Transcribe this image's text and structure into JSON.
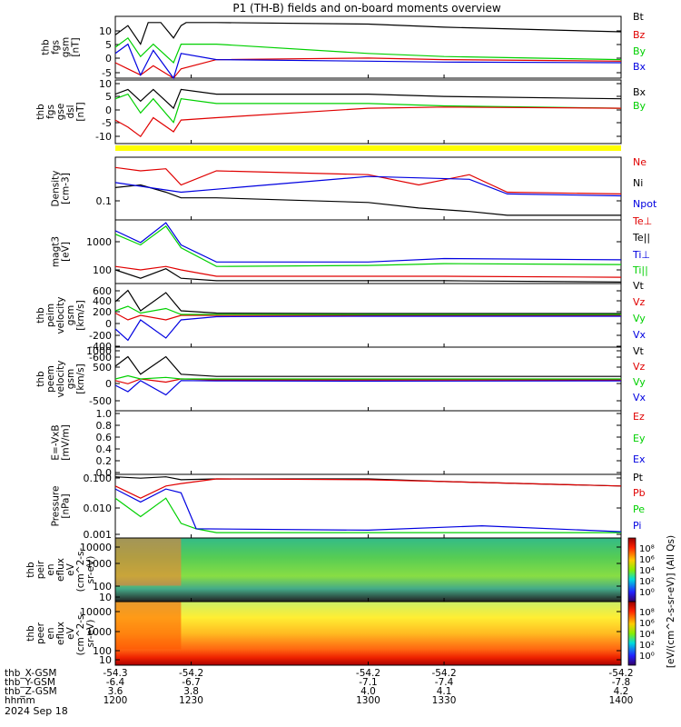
{
  "title": "P1 (TH-B) fields and on-board moments overview",
  "footer_date": "2024 Sep 18",
  "colors": {
    "black": "#000000",
    "red": "#e00000",
    "green": "#00d000",
    "blue": "#0000e0",
    "yellow": "#ffff00"
  },
  "chart_data": [
    {
      "type": "line",
      "panel": "thb_fgs_gsm",
      "ylabel": [
        "thb",
        "fgs",
        "gsm",
        "[nT]"
      ],
      "ylim": [
        -5,
        15
      ],
      "yticks": [
        "10",
        "5",
        "0",
        "-5"
      ],
      "series": [
        {
          "name": "Bt",
          "color": "black",
          "x": [
            1200,
            1205,
            1210,
            1213,
            1218,
            1223,
            1226,
            1228,
            1240,
            1300,
            1330,
            1400
          ],
          "y": [
            9,
            12,
            6,
            13,
            13,
            8,
            12,
            13,
            13,
            12.5,
            11.5,
            10
          ]
        },
        {
          "name": "Bz",
          "color": "red",
          "x": [
            1200,
            1205,
            1210,
            1215,
            1223,
            1226,
            1240,
            1300,
            1330,
            1400
          ],
          "y": [
            0,
            -2,
            -4,
            -1,
            -5,
            -2,
            1,
            1.5,
            1,
            0.5
          ]
        },
        {
          "name": "By",
          "color": "green",
          "x": [
            1200,
            1205,
            1210,
            1215,
            1223,
            1226,
            1240,
            1300,
            1330,
            1400
          ],
          "y": [
            5,
            8,
            2,
            6,
            0,
            6,
            6,
            3,
            2,
            1
          ]
        },
        {
          "name": "Bx",
          "color": "blue",
          "x": [
            1200,
            1205,
            1210,
            1215,
            1223,
            1226,
            1240,
            1300,
            1330,
            1400
          ],
          "y": [
            3,
            6,
            -4,
            4,
            -5,
            3,
            1,
            0.5,
            0.2,
            0
          ]
        }
      ]
    },
    {
      "type": "line",
      "panel": "thb_fgs_gse_dsl",
      "ylabel": [
        "thb",
        "fgs",
        "gse",
        "dsl",
        "[nT]"
      ],
      "ylim": [
        -15,
        12
      ],
      "yticks": [
        "10",
        "5",
        "0",
        "-5",
        "-10"
      ],
      "series": [
        {
          "name": "Bx",
          "color": "black",
          "x": [
            1200,
            1205,
            1210,
            1215,
            1223,
            1226,
            1240,
            1300,
            1330,
            1400
          ],
          "y": [
            6,
            8,
            3,
            8,
            0,
            8,
            6,
            6,
            5,
            4
          ]
        },
        {
          "name": "By",
          "color": "green",
          "x": [
            1200,
            1205,
            1210,
            1215,
            1223,
            1226,
            1240,
            1300,
            1330,
            1400
          ],
          "y": [
            4,
            6,
            -2,
            4,
            -6,
            4,
            2,
            2,
            1,
            0
          ]
        },
        {
          "name": "Bz",
          "color": "red",
          "x": [
            1200,
            1205,
            1210,
            1215,
            1223,
            1226,
            1240,
            1300,
            1330,
            1400
          ],
          "y": [
            -5,
            -8,
            -12,
            -4,
            -10,
            -5,
            -4,
            0,
            0.5,
            0
          ]
        }
      ]
    },
    {
      "type": "line",
      "panel": "density",
      "ylabel": [
        "Density",
        "[cm-3]"
      ],
      "yscale": "log",
      "ylim": [
        0.05,
        0.6
      ],
      "yticks": [
        "0.1"
      ],
      "series": [
        {
          "name": "Ne",
          "color": "red",
          "x": [
            1200,
            1210,
            1220,
            1226,
            1240,
            1300,
            1320,
            1340,
            1355,
            1400
          ],
          "y": [
            0.4,
            0.35,
            0.38,
            0.2,
            0.35,
            0.3,
            0.2,
            0.3,
            0.15,
            0.14
          ]
        },
        {
          "name": "Ni",
          "color": "black",
          "x": [
            1200,
            1210,
            1220,
            1226,
            1240,
            1300,
            1320,
            1340,
            1355,
            1400
          ],
          "y": [
            0.18,
            0.2,
            0.15,
            0.12,
            0.12,
            0.1,
            0.08,
            0.07,
            0.06,
            0.06
          ]
        },
        {
          "name": "Npot",
          "color": "blue",
          "x": [
            1200,
            1226,
            1260,
            1300,
            1340,
            1355,
            1400
          ],
          "y": [
            0.22,
            0.15,
            0.2,
            0.28,
            0.25,
            0.14,
            0.13
          ]
        }
      ]
    },
    {
      "type": "line",
      "panel": "magt3",
      "ylabel": [
        "magt3",
        "[eV]"
      ],
      "yscale": "log",
      "ylim": [
        50,
        3000
      ],
      "yticks": [
        "1000",
        "100"
      ],
      "series": [
        {
          "name": "Te⊥",
          "color": "red",
          "x": [
            1200,
            1210,
            1220,
            1226,
            1240,
            1300,
            1330,
            1400
          ],
          "y": [
            150,
            120,
            150,
            120,
            80,
            80,
            80,
            75
          ]
        },
        {
          "name": "Te||",
          "color": "black",
          "x": [
            1200,
            1210,
            1220,
            1226,
            1240,
            1300,
            1330,
            1400
          ],
          "y": [
            120,
            70,
            130,
            70,
            60,
            60,
            60,
            55
          ]
        },
        {
          "name": "Ti⊥",
          "color": "blue",
          "x": [
            1200,
            1210,
            1220,
            1226,
            1240,
            1300,
            1330,
            1400
          ],
          "y": [
            1500,
            700,
            2500,
            600,
            200,
            200,
            250,
            230
          ]
        },
        {
          "name": "Ti||",
          "color": "green",
          "x": [
            1200,
            1210,
            1220,
            1226,
            1240,
            1300,
            1330,
            1400
          ],
          "y": [
            1200,
            600,
            2000,
            500,
            150,
            160,
            180,
            170
          ]
        }
      ]
    },
    {
      "type": "line",
      "panel": "thb_peim_velocity_gsm",
      "ylabel": [
        "thb",
        "peim",
        "velocity",
        "gsm",
        "[km/s]"
      ],
      "ylim": [
        -700,
        700
      ],
      "yticks": [
        "600",
        "400",
        "200",
        "0",
        "-200",
        "-400",
        "-600"
      ],
      "series": [
        {
          "name": "Vt",
          "color": "black",
          "x": [
            1200,
            1205,
            1210,
            1220,
            1226,
            1240,
            1300,
            1400
          ],
          "y": [
            300,
            550,
            100,
            500,
            100,
            50,
            40,
            40
          ]
        },
        {
          "name": "Vz",
          "color": "red",
          "x": [
            1200,
            1205,
            1210,
            1220,
            1226,
            1240,
            1300,
            1400
          ],
          "y": [
            50,
            -100,
            0,
            -100,
            0,
            0,
            0,
            0
          ]
        },
        {
          "name": "Vy",
          "color": "green",
          "x": [
            1200,
            1205,
            1210,
            1220,
            1226,
            1240,
            1300,
            1400
          ],
          "y": [
            100,
            200,
            50,
            150,
            20,
            20,
            20,
            20
          ]
        },
        {
          "name": "Vx",
          "color": "blue",
          "x": [
            1200,
            1205,
            1210,
            1220,
            1226,
            1240,
            1300,
            1400
          ],
          "y": [
            -300,
            -550,
            -100,
            -500,
            -100,
            -30,
            -20,
            -20
          ]
        }
      ]
    },
    {
      "type": "line",
      "panel": "thb_peem_velocity_gsm",
      "ylabel": [
        "thb",
        "peem",
        "velocity",
        "gsm",
        "[km/s]"
      ],
      "ylim": [
        -1000,
        1000
      ],
      "yticks": [
        "1000",
        "500",
        "0",
        "-500"
      ],
      "series": [
        {
          "name": "Vt",
          "color": "black",
          "x": [
            1200,
            1205,
            1210,
            1220,
            1226,
            1240,
            1300,
            1400
          ],
          "y": [
            400,
            700,
            150,
            700,
            150,
            80,
            80,
            80
          ]
        },
        {
          "name": "Vz",
          "color": "red",
          "x": [
            1200,
            1205,
            1210,
            1220,
            1226,
            1240,
            1300,
            1400
          ],
          "y": [
            -50,
            -150,
            0,
            -100,
            0,
            -30,
            -30,
            -30
          ]
        },
        {
          "name": "Vy",
          "color": "green",
          "x": [
            1200,
            1205,
            1210,
            1220,
            1226,
            1240,
            1300,
            1400
          ],
          "y": [
            0,
            100,
            0,
            50,
            0,
            0,
            0,
            0
          ]
        },
        {
          "name": "Vx",
          "color": "blue",
          "x": [
            1200,
            1205,
            1210,
            1220,
            1226,
            1240,
            1300,
            1400
          ],
          "y": [
            -200,
            -400,
            -50,
            -500,
            -50,
            -60,
            -70,
            -60
          ]
        }
      ]
    },
    {
      "type": "line",
      "panel": "e_vxb",
      "ylabel": [
        "E=-VxB",
        "[mV/m]"
      ],
      "ylim": [
        0,
        1
      ],
      "yticks": [
        "1.0",
        "0.8",
        "0.6",
        "0.4",
        "0.2",
        "0.0"
      ],
      "legend": [
        "Ez",
        "Ey",
        "Ex"
      ],
      "series": []
    },
    {
      "type": "line",
      "panel": "pressure",
      "ylabel": [
        "Pressure",
        "[nPa]"
      ],
      "yscale": "log",
      "ylim": [
        0.001,
        0.12
      ],
      "yticks": [
        "0.100",
        "0.010",
        "0.001"
      ],
      "series": [
        {
          "name": "Pt",
          "color": "black",
          "x": [
            1200,
            1210,
            1220,
            1226,
            1240,
            1300,
            1330,
            1400
          ],
          "y": [
            0.1,
            0.09,
            0.1,
            0.08,
            0.085,
            0.085,
            0.07,
            0.05
          ]
        },
        {
          "name": "Pb",
          "color": "red",
          "x": [
            1200,
            1210,
            1220,
            1226,
            1240,
            1300,
            1330,
            1400
          ],
          "y": [
            0.05,
            0.02,
            0.05,
            0.06,
            0.085,
            0.08,
            0.07,
            0.05
          ]
        },
        {
          "name": "Pe",
          "color": "green",
          "x": [
            1200,
            1210,
            1220,
            1226,
            1232,
            1240,
            1300,
            1400
          ],
          "y": [
            0.02,
            0.005,
            0.02,
            0.003,
            0.002,
            0.0015,
            0.0015,
            0.0015
          ]
        },
        {
          "name": "Pi",
          "color": "blue",
          "x": [
            1200,
            1210,
            1220,
            1226,
            1232,
            1300,
            1345,
            1400
          ],
          "y": [
            0.04,
            0.015,
            0.04,
            0.03,
            0.002,
            0.0018,
            0.0025,
            0.0016
          ]
        }
      ]
    },
    {
      "type": "heatmap",
      "panel": "thb_peir_en_eflux",
      "ylabel": [
        "thb",
        "peir",
        "en",
        "eflux",
        "eV",
        "(cm^2-s-",
        "sr-eV)"
      ],
      "yscale": "log",
      "yticks": [
        "10000",
        "1000",
        "100",
        "10"
      ]
    },
    {
      "type": "heatmap",
      "panel": "thb_peer_en_eflux",
      "ylabel": [
        "thb",
        "peer",
        "en",
        "eflux",
        "eV",
        "(cm^2-s-",
        "sr-eV)"
      ],
      "yscale": "log",
      "yticks": [
        "10000",
        "1000",
        "100",
        "10"
      ]
    }
  ],
  "colorbar": {
    "label": "[eV/(cm^2-s-sr-eV)] (All Qs)",
    "upper_ticks": [
      "10⁸",
      "10⁶",
      "10⁴",
      "10²",
      "10⁰"
    ],
    "lower_ticks": [
      "10⁸",
      "10⁶",
      "10⁴",
      "10²",
      "10⁰"
    ]
  },
  "x_axis": {
    "rows": [
      {
        "label": "thb_X-GSM",
        "values": [
          "-54.3",
          "-54.2",
          "-54.2",
          "-54.2",
          "-54.2"
        ]
      },
      {
        "label": "thb_Y-GSM",
        "values": [
          "-6.4",
          "-6.7",
          "-7.1",
          "-7.4",
          "-7.8"
        ]
      },
      {
        "label": "thb_Z-GSM",
        "values": [
          "3.6",
          "3.8",
          "4.0",
          "4.1",
          "4.2"
        ]
      },
      {
        "label": "hhmm",
        "values": [
          "1200",
          "1230",
          "1300",
          "1330",
          "1400"
        ]
      }
    ]
  }
}
